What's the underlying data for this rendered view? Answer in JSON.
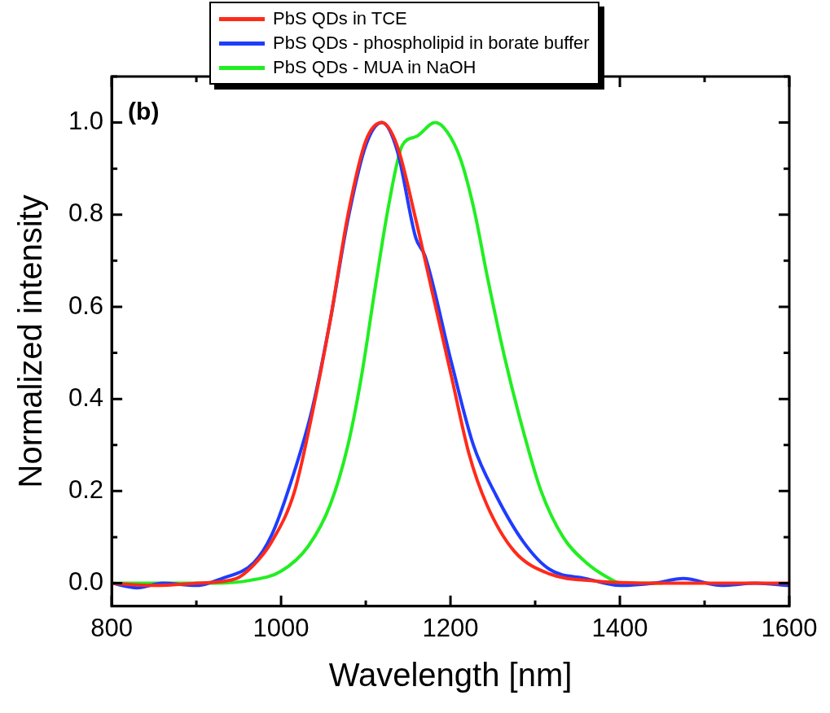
{
  "chart_data": {
    "type": "line",
    "xlabel": "Wavelength [nm]",
    "ylabel": "Normalized intensity",
    "annotations": [
      "(b)"
    ],
    "xlim": [
      800,
      1600
    ],
    "ylim": [
      -0.05,
      1.1
    ],
    "xticks": [
      800,
      {
        "value": 900,
        "label": null
      },
      1000,
      {
        "value": 1100,
        "label": null
      },
      1200,
      {
        "value": 1300,
        "label": null
      },
      1400,
      {
        "value": 1500,
        "label": null
      },
      1600
    ],
    "yticks": [
      {
        "value": 0,
        "label": "0.0"
      },
      {
        "value": 0.1,
        "label": null
      },
      0.2,
      {
        "value": 0.3,
        "label": null
      },
      0.4,
      {
        "value": 0.5,
        "label": null
      },
      0.6,
      {
        "value": 0.7,
        "label": null
      },
      0.8,
      {
        "value": 0.9,
        "label": null
      },
      {
        "value": 1,
        "label": "1.0"
      },
      {
        "value": 1.1,
        "label": null
      }
    ],
    "grid": false,
    "legend": "top",
    "marker": "none",
    "line_style": "solid",
    "series": [
      {
        "name": "PbS QDs in TCE",
        "color": "#ff2a1a",
        "x": [
          800,
          850,
          900,
          947,
          968,
          989,
          1016,
          1037,
          1058,
          1079,
          1100,
          1119,
          1137,
          1159,
          1180,
          1201,
          1222,
          1243,
          1275,
          1317,
          1370,
          1450,
          1520,
          1600
        ],
        "values": [
          0,
          -0.005,
          0,
          0.01,
          0.04,
          0.09,
          0.2,
          0.37,
          0.57,
          0.8,
          0.96,
          1.0,
          0.95,
          0.79,
          0.62,
          0.45,
          0.28,
          0.17,
          0.07,
          0.02,
          0.005,
          0,
          0,
          0
        ]
      },
      {
        "name": "PbS QDs - phospholipid in borate buffer",
        "color": "#1f3cff",
        "x": [
          800,
          830,
          860,
          900,
          930,
          968,
          989,
          1010,
          1037,
          1058,
          1079,
          1100,
          1119,
          1137,
          1159,
          1170,
          1201,
          1227,
          1254,
          1286,
          1317,
          1360,
          1400,
          1440,
          1475,
          1520,
          1560,
          1600
        ],
        "values": [
          0,
          -0.01,
          0,
          -0.005,
          0.01,
          0.045,
          0.105,
          0.21,
          0.38,
          0.57,
          0.79,
          0.95,
          1.0,
          0.94,
          0.75,
          0.71,
          0.48,
          0.3,
          0.19,
          0.09,
          0.03,
          0.01,
          -0.005,
          0,
          0.01,
          -0.005,
          0,
          -0.005
        ]
      },
      {
        "name": "PbS QDs - MUA in NaOH",
        "color": "#22ee22",
        "x": [
          800,
          860,
          921,
          963,
          1000,
          1032,
          1058,
          1079,
          1095,
          1111,
          1127,
          1143,
          1160,
          1182,
          1196,
          1212,
          1228,
          1243,
          1264,
          1286,
          1307,
          1333,
          1360,
          1386,
          1402,
          1450
        ],
        "values": [
          0,
          0,
          0,
          0.006,
          0.026,
          0.08,
          0.17,
          0.3,
          0.45,
          0.64,
          0.82,
          0.95,
          0.97,
          1.0,
          0.98,
          0.92,
          0.81,
          0.67,
          0.49,
          0.33,
          0.2,
          0.1,
          0.045,
          0.012,
          0,
          0
        ]
      }
    ]
  }
}
